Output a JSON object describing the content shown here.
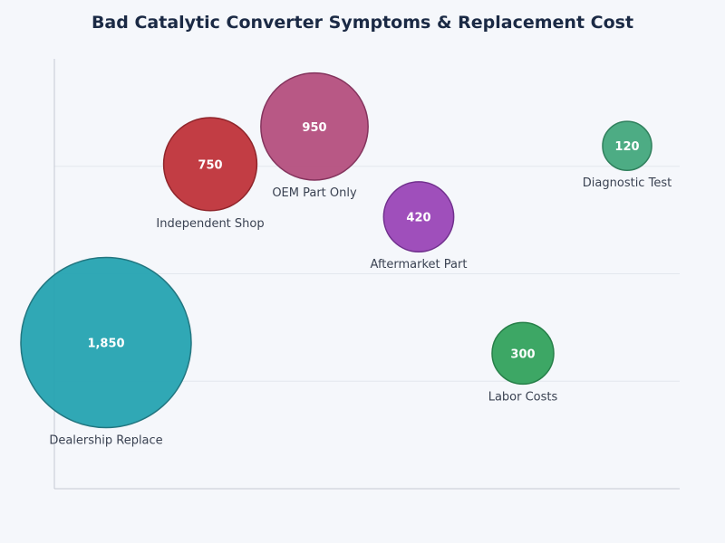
{
  "chart_data": {
    "type": "scatter",
    "title": "Bad Catalytic Converter Symptoms & Replacement Cost",
    "xlabel": "",
    "ylabel": "",
    "ylim": [
      0,
      4
    ],
    "grid": true,
    "legend": "none",
    "points": [
      {
        "label": "Dealership Replace",
        "value": 1850,
        "value_label": "1,850",
        "x": 0,
        "y": 1.36,
        "color": "#26a4b2",
        "stroke": "#17707a"
      },
      {
        "label": "Independent Shop",
        "value": 750,
        "value_label": "750",
        "x": 1,
        "y": 3.02,
        "color": "#c0343b",
        "stroke": "#8b1a20"
      },
      {
        "label": "OEM Part Only",
        "value": 950,
        "value_label": "950",
        "x": 2,
        "y": 3.37,
        "color": "#b5507f",
        "stroke": "#7e2a55"
      },
      {
        "label": "Aftermarket Part",
        "value": 420,
        "value_label": "420",
        "x": 3,
        "y": 2.53,
        "color": "#9b47b8",
        "stroke": "#6a2688"
      },
      {
        "label": "Labor Costs",
        "value": 300,
        "value_label": "300",
        "x": 4,
        "y": 1.26,
        "color": "#34a35e",
        "stroke": "#1d7a40"
      },
      {
        "label": "Diagnostic Test",
        "value": 120,
        "value_label": "120",
        "x": 5,
        "y": 3.19,
        "color": "#45a97e",
        "stroke": "#267a55"
      }
    ]
  }
}
